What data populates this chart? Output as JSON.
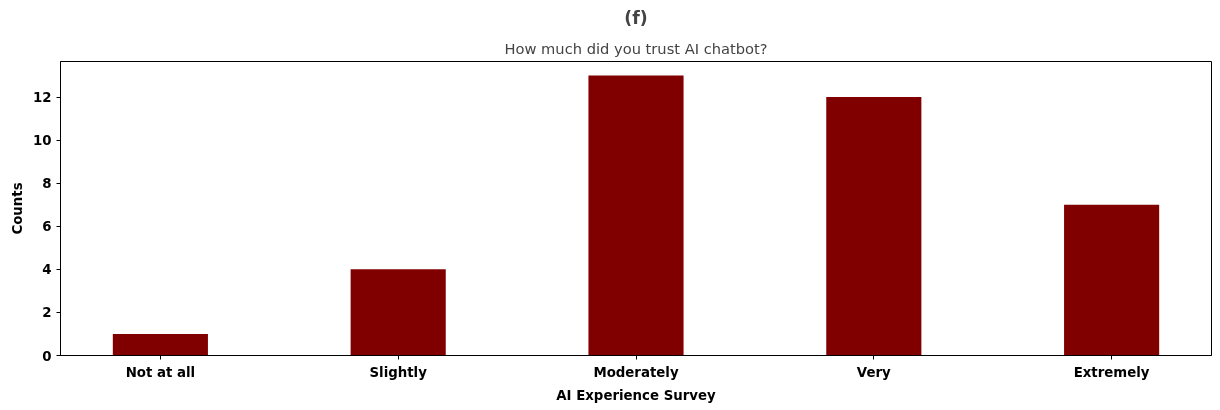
{
  "chart_data": {
    "type": "bar",
    "title": "(f)",
    "subtitle": "How much did you trust AI chatbot?",
    "xlabel": "AI Experience Survey",
    "ylabel": "Counts",
    "categories": [
      "Not at all",
      "Slightly",
      "Moderately",
      "Very",
      "Extremely"
    ],
    "values": [
      1,
      4,
      13,
      12,
      7
    ],
    "color": "#800000",
    "ylim": [
      0,
      13.65
    ],
    "yticks": [
      0,
      2,
      4,
      6,
      8,
      10,
      12
    ],
    "grid": false
  }
}
